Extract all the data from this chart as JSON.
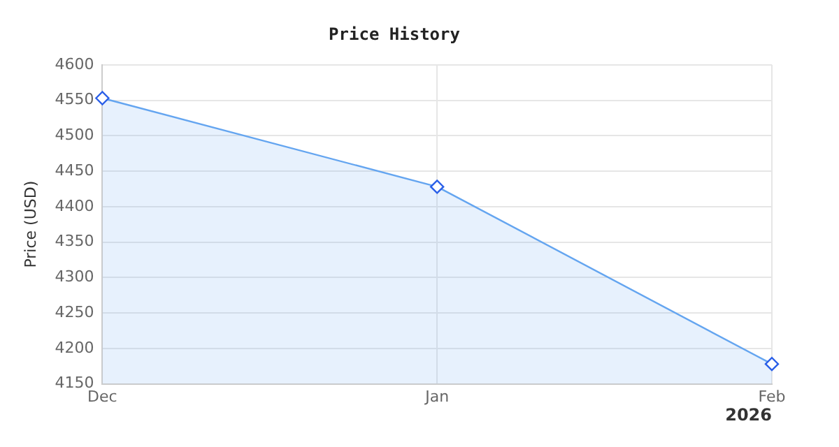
{
  "chart_data": {
    "type": "area",
    "title": "Price History",
    "ylabel": "Price (USD)",
    "x": [
      "2025-12-01",
      "2026-01-01",
      "2026-02-01"
    ],
    "series": [
      {
        "color": "#64a5f0",
        "values": [
          4553,
          4428,
          4178
        ]
      }
    ],
    "xlim": [
      "2025-12-01",
      "2026-02-01"
    ],
    "xticks": [
      {
        "value": "2025-12-01",
        "label": "Dec"
      },
      {
        "value": "2026-01-01",
        "label": "Jan"
      },
      {
        "value": "2026-02-01",
        "label": "Feb"
      }
    ],
    "ylim": [
      4150,
      4600
    ],
    "yticks": [
      4150,
      4200,
      4250,
      4300,
      4350,
      4400,
      4450,
      4500,
      4550,
      4600
    ],
    "annotations": [
      "2026"
    ],
    "grid": true,
    "legend": false,
    "marker": "diamond",
    "line_style": "solid"
  }
}
